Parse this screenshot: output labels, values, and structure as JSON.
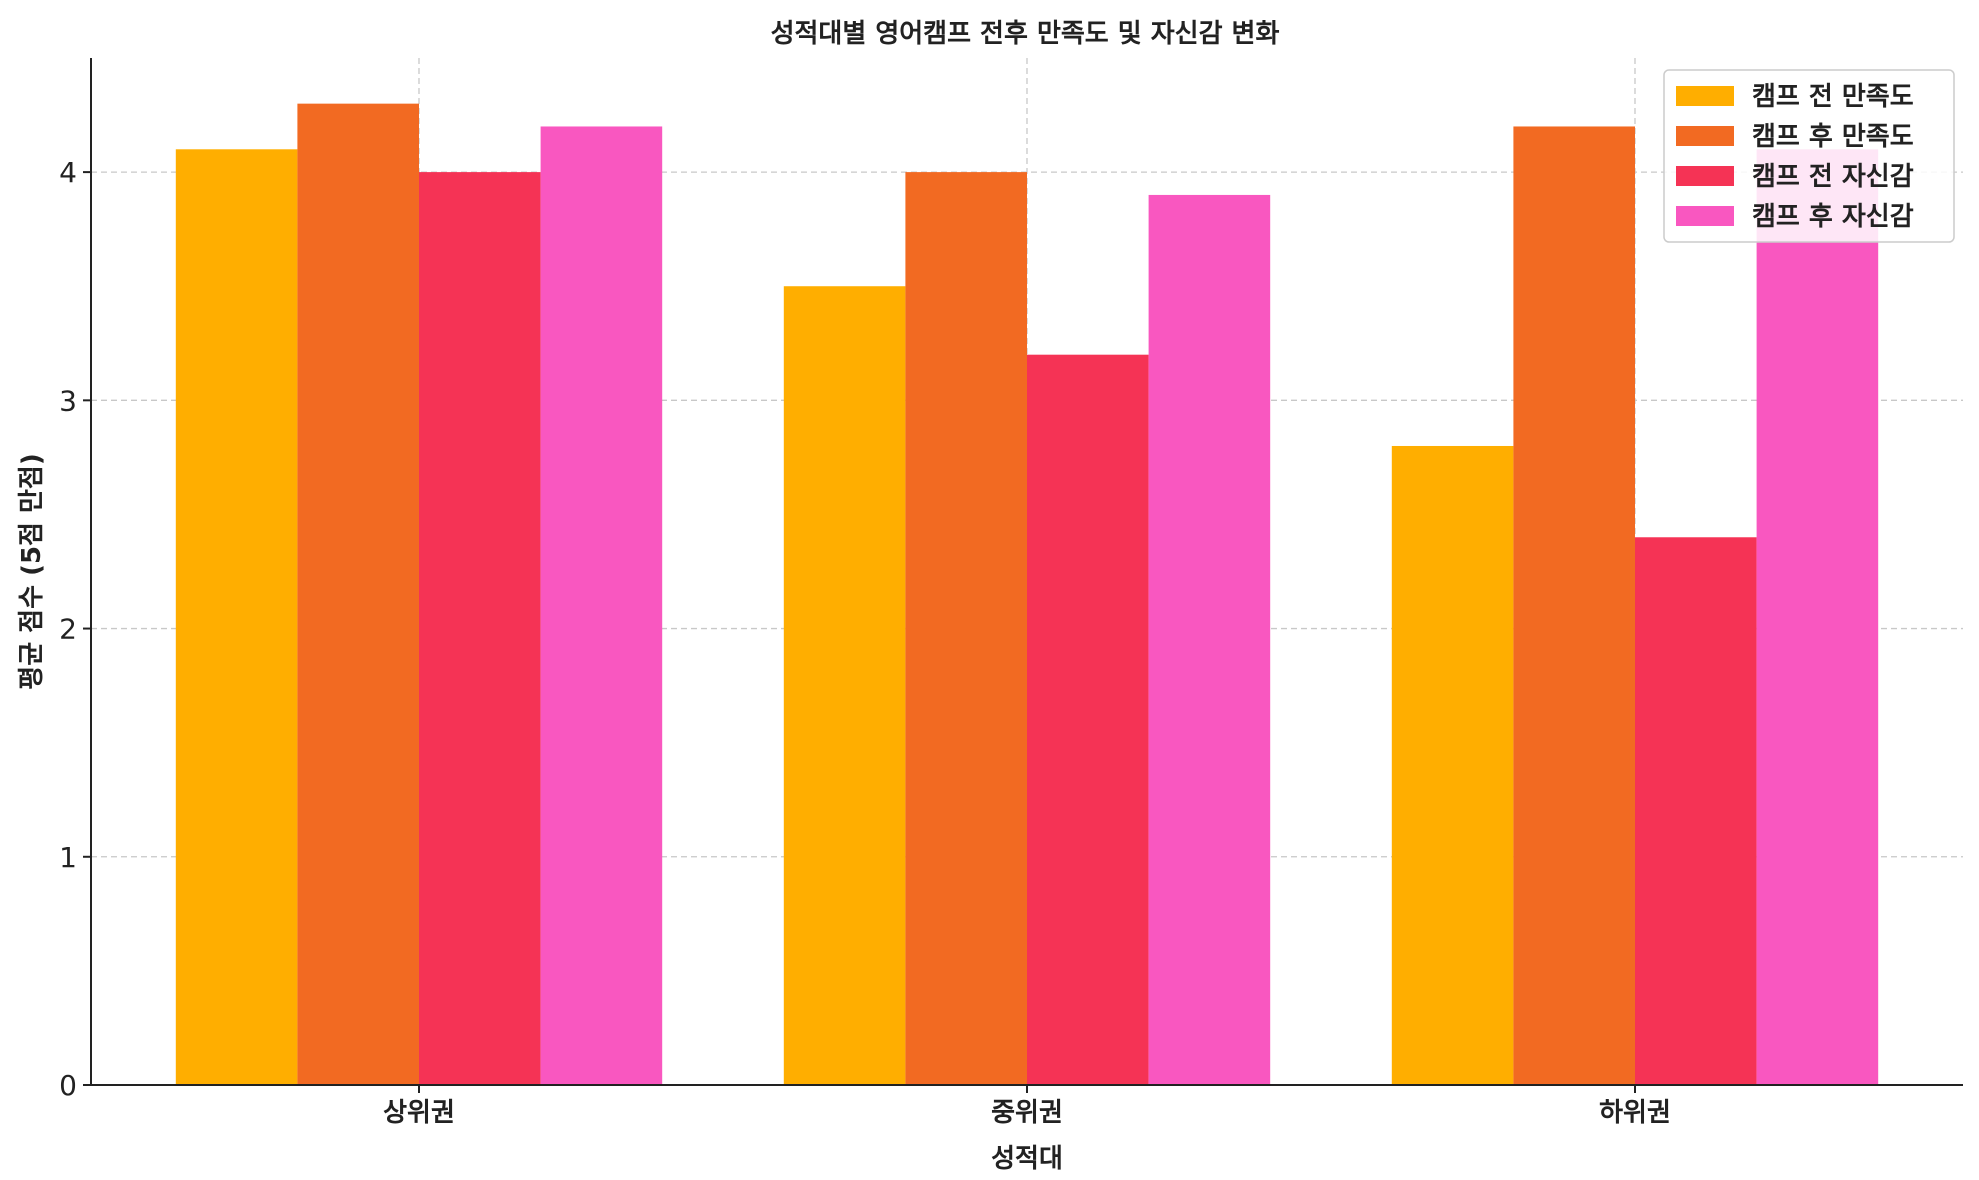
{
  "chart_data": {
    "type": "bar",
    "title": "성적대별 영어캠프 전후 만족도 및 자신감 변화",
    "xlabel": "성적대",
    "ylabel": "평균 점수 (5점 만점)",
    "categories": [
      "상위권",
      "중위권",
      "하위권"
    ],
    "series": [
      {
        "name": "캠프 전 만족도",
        "color": "#FFAE00",
        "values": [
          4.1,
          3.5,
          2.8
        ]
      },
      {
        "name": "캠프 후 만족도",
        "color": "#F26A22",
        "values": [
          4.3,
          4.0,
          4.2
        ]
      },
      {
        "name": "캠프 전 자신감",
        "color": "#F53355",
        "values": [
          4.0,
          3.2,
          2.4
        ]
      },
      {
        "name": "캠프 후 자신감",
        "color": "#F957C0",
        "values": [
          4.2,
          3.9,
          4.1
        ]
      }
    ],
    "ylim": [
      0,
      4.5
    ],
    "yticks": [
      0,
      1,
      2,
      3,
      4
    ],
    "grid": true,
    "legend_position": "top-right"
  }
}
